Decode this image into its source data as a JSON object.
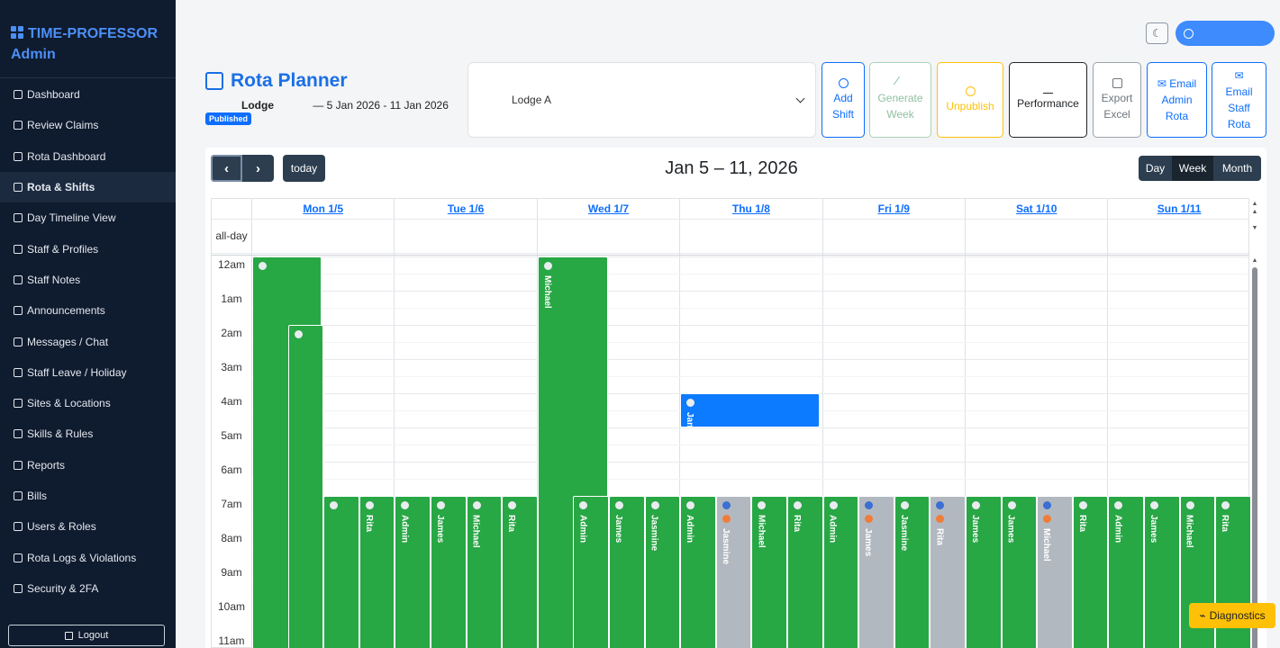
{
  "app": {
    "brand_line1": "TIME-PROFESSOR",
    "brand_line2": "Admin"
  },
  "sidebar": {
    "items": [
      {
        "label": "Dashboard",
        "icon": "home-icon"
      },
      {
        "label": "Review Claims",
        "icon": "claims-icon"
      },
      {
        "label": "Rota Dashboard",
        "icon": "rota-dashboard-icon"
      },
      {
        "label": "Rota & Shifts",
        "icon": "rota-shifts-icon",
        "active": true
      },
      {
        "label": "Day Timeline View",
        "icon": "timeline-icon"
      },
      {
        "label": "Staff & Profiles",
        "icon": "people-icon"
      },
      {
        "label": "Staff Notes",
        "icon": "notes-icon"
      },
      {
        "label": "Announcements",
        "icon": "megaphone-icon"
      },
      {
        "label": "Messages / Chat",
        "icon": "chat-icon"
      },
      {
        "label": "Staff Leave / Holiday",
        "icon": "calendar-check-icon"
      },
      {
        "label": "Sites & Locations",
        "icon": "location-pin-icon"
      },
      {
        "label": "Skills & Rules",
        "icon": "check-circle-icon"
      },
      {
        "label": "Reports",
        "icon": "report-icon"
      },
      {
        "label": "Bills",
        "icon": "bill-icon"
      },
      {
        "label": "Users & Roles",
        "icon": "user-badge-icon"
      },
      {
        "label": "Rota Logs & Violations",
        "icon": "logs-chat-icon"
      },
      {
        "label": "Security & 2FA",
        "icon": "shield-icon"
      }
    ],
    "logout": "Logout"
  },
  "header": {
    "title": "Rota Planner",
    "site_name": "Lodge",
    "date_range": "— 5 Jan 2026 - 11 Jan 2026",
    "status_badge": "Published",
    "site_select_value": "Lodge A"
  },
  "toolbar": {
    "add_shift": [
      "Add",
      "Shift"
    ],
    "generate_week": [
      "Generate",
      "Week"
    ],
    "unpublish": "Unpublish",
    "performance": "Performance",
    "export_excel": [
      "Export",
      "Excel"
    ],
    "email_admin": [
      "Email",
      "Admin",
      "Rota"
    ],
    "email_staff": [
      "Email",
      "Staff",
      "Rota"
    ]
  },
  "calendar": {
    "today": "today",
    "title": "Jan 5 – 11, 2026",
    "views": [
      "Day",
      "Week",
      "Month"
    ],
    "active_view": "Week",
    "allday_label": "all-day",
    "days": [
      "Mon 1/5",
      "Tue 1/6",
      "Wed 1/7",
      "Thu 1/8",
      "Fri 1/9",
      "Sat 1/10",
      "Sun 1/11"
    ],
    "times": [
      "12am",
      "1am",
      "2am",
      "3am",
      "4am",
      "5am",
      "6am",
      "7am",
      "8am",
      "9am",
      "10am",
      "11am"
    ],
    "events": [
      {
        "day": 0,
        "col": 0,
        "start": 0,
        "end": 12,
        "color": "green",
        "name": ""
      },
      {
        "day": 0,
        "col": 1,
        "start": 2,
        "end": 12,
        "color": "green",
        "name": ""
      },
      {
        "day": 0,
        "col": 2,
        "start": 7,
        "end": 12,
        "color": "green",
        "name": ""
      },
      {
        "day": 0,
        "col": 3,
        "start": 7,
        "end": 12,
        "color": "green",
        "name": "Rita"
      },
      {
        "day": 1,
        "col": 0,
        "start": 7,
        "end": 12,
        "color": "green",
        "name": "Admin"
      },
      {
        "day": 1,
        "col": 1,
        "start": 7,
        "end": 12,
        "color": "green",
        "name": "James"
      },
      {
        "day": 1,
        "col": 2,
        "start": 7,
        "end": 12,
        "color": "green",
        "name": "Michael"
      },
      {
        "day": 1,
        "col": 3,
        "start": 7,
        "end": 12,
        "color": "green",
        "name": "Rita"
      },
      {
        "day": 2,
        "col": 0,
        "start": 0,
        "end": 12,
        "color": "green",
        "name": "Michael"
      },
      {
        "day": 2,
        "col": 1,
        "start": 7,
        "end": 12,
        "color": "green",
        "name": "Admin"
      },
      {
        "day": 2,
        "col": 2,
        "start": 7,
        "end": 12,
        "color": "green",
        "name": "James"
      },
      {
        "day": 2,
        "col": 3,
        "start": 7,
        "end": 12,
        "color": "green",
        "name": "Jasmine"
      },
      {
        "day": 3,
        "col": 0,
        "start": 4,
        "end": 5,
        "color": "blue",
        "name": "Jan",
        "span": 4
      },
      {
        "day": 3,
        "col": 0,
        "start": 7,
        "end": 12,
        "color": "green",
        "name": "Admin"
      },
      {
        "day": 3,
        "col": 1,
        "start": 7,
        "end": 12,
        "color": "grey",
        "name": "Jasmine",
        "dots": [
          "bd",
          "od"
        ]
      },
      {
        "day": 3,
        "col": 2,
        "start": 7,
        "end": 12,
        "color": "green",
        "name": "Michael"
      },
      {
        "day": 3,
        "col": 3,
        "start": 7,
        "end": 12,
        "color": "green",
        "name": "Rita"
      },
      {
        "day": 4,
        "col": 0,
        "start": 7,
        "end": 12,
        "color": "green",
        "name": "Admin"
      },
      {
        "day": 4,
        "col": 1,
        "start": 7,
        "end": 12,
        "color": "grey",
        "name": "James",
        "dots": [
          "bd",
          "od"
        ]
      },
      {
        "day": 4,
        "col": 2,
        "start": 7,
        "end": 12,
        "color": "green",
        "name": "Jasmine"
      },
      {
        "day": 4,
        "col": 3,
        "start": 7,
        "end": 12,
        "color": "grey",
        "name": "Rita",
        "dots": [
          "bd",
          "od"
        ]
      },
      {
        "day": 5,
        "col": 0,
        "start": 7,
        "end": 12,
        "color": "green",
        "name": "James"
      },
      {
        "day": 5,
        "col": 1,
        "start": 7,
        "end": 12,
        "color": "green",
        "name": "James"
      },
      {
        "day": 5,
        "col": 2,
        "start": 7,
        "end": 12,
        "color": "grey",
        "name": "Michael",
        "dots": [
          "bd",
          "od"
        ]
      },
      {
        "day": 5,
        "col": 3,
        "start": 7,
        "end": 12,
        "color": "green",
        "name": "Rita"
      },
      {
        "day": 6,
        "col": 0,
        "start": 7,
        "end": 12,
        "color": "green",
        "name": "Admin"
      },
      {
        "day": 6,
        "col": 1,
        "start": 7,
        "end": 12,
        "color": "green",
        "name": "James"
      },
      {
        "day": 6,
        "col": 2,
        "start": 7,
        "end": 12,
        "color": "green",
        "name": "Michael"
      },
      {
        "day": 6,
        "col": 3,
        "start": 7,
        "end": 12,
        "color": "green",
        "name": "Rita"
      }
    ]
  },
  "diagnostics": "Diagnostics",
  "colors": {
    "sidebar_bg": "#0f1b2e",
    "primary": "#0d6efd",
    "shift_green": "#28a745",
    "shift_blue": "#0d7bff",
    "shift_grey": "#b2b8bf",
    "warning": "#ffc107"
  }
}
